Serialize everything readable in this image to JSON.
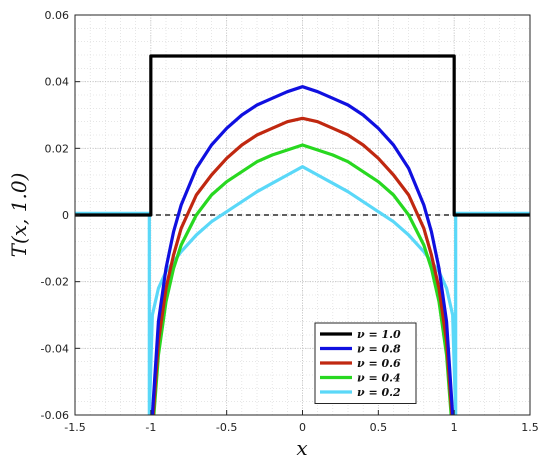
{
  "chart_data": {
    "type": "line",
    "xlabel": "x",
    "ylabel": "T(x, 1.0)",
    "xlim": [
      -1.5,
      1.5
    ],
    "ylim": [
      -0.06,
      0.06
    ],
    "grid": "major and minor (dotted)",
    "legend_position": "bottom-right",
    "xticks": [
      "-1.5",
      "-1",
      "-0.5",
      "0",
      "0.5",
      "1",
      "1.5"
    ],
    "yticks": [
      "-0.06",
      "-0.04",
      "-0.02",
      "0",
      "0.02",
      "0.04",
      "0.06"
    ],
    "zero_line": {
      "y": 0,
      "style": "dashed",
      "color": "#000000"
    },
    "series": [
      {
        "name": "ν = 1.0",
        "color": "#000000",
        "x": [
          -1.5,
          -1.0,
          -1.0,
          -1.0,
          1.0,
          1.0,
          1.0,
          1.5
        ],
        "y": [
          0.0,
          0.0,
          0.0477,
          0.0477,
          0.0477,
          0.0477,
          0.0,
          0.0
        ]
      },
      {
        "name": "ν = 0.8",
        "color": "#1010e0",
        "x": [
          -0.99,
          -0.95,
          -0.9,
          -0.85,
          -0.8,
          -0.7,
          -0.6,
          -0.5,
          -0.4,
          -0.3,
          -0.2,
          -0.1,
          0.0,
          0.1,
          0.2,
          0.3,
          0.4,
          0.5,
          0.6,
          0.7,
          0.8,
          0.85,
          0.9,
          0.95,
          0.99
        ],
        "y": [
          -0.06,
          -0.032,
          -0.016,
          -0.005,
          0.003,
          0.014,
          0.021,
          0.026,
          0.03,
          0.033,
          0.035,
          0.037,
          0.0385,
          0.037,
          0.035,
          0.033,
          0.03,
          0.026,
          0.021,
          0.014,
          0.003,
          -0.005,
          -0.016,
          -0.032,
          -0.06
        ]
      },
      {
        "name": "ν = 0.6",
        "color": "#c02810",
        "x": [
          -0.985,
          -0.95,
          -0.9,
          -0.85,
          -0.8,
          -0.7,
          -0.6,
          -0.5,
          -0.4,
          -0.3,
          -0.2,
          -0.1,
          0.0,
          0.1,
          0.2,
          0.3,
          0.4,
          0.5,
          0.6,
          0.7,
          0.8,
          0.85,
          0.9,
          0.95,
          0.985
        ],
        "y": [
          -0.06,
          -0.038,
          -0.022,
          -0.012,
          -0.004,
          0.006,
          0.012,
          0.017,
          0.021,
          0.024,
          0.026,
          0.028,
          0.029,
          0.028,
          0.026,
          0.024,
          0.021,
          0.017,
          0.012,
          0.006,
          -0.004,
          -0.012,
          -0.022,
          -0.038,
          -0.06
        ]
      },
      {
        "name": "ν = 0.4",
        "color": "#28d820",
        "x": [
          -0.98,
          -0.95,
          -0.9,
          -0.85,
          -0.8,
          -0.7,
          -0.6,
          -0.5,
          -0.4,
          -0.3,
          -0.2,
          -0.1,
          0.0,
          0.1,
          0.2,
          0.3,
          0.4,
          0.5,
          0.6,
          0.7,
          0.8,
          0.85,
          0.9,
          0.95,
          0.98
        ],
        "y": [
          -0.06,
          -0.042,
          -0.026,
          -0.016,
          -0.009,
          0.0,
          0.006,
          0.01,
          0.013,
          0.016,
          0.018,
          0.0195,
          0.021,
          0.0195,
          0.018,
          0.016,
          0.013,
          0.01,
          0.006,
          0.0,
          -0.009,
          -0.016,
          -0.026,
          -0.042,
          -0.06
        ]
      },
      {
        "name": "ν = 0.2",
        "color": "#5ad8f8",
        "x": [
          -1.5,
          -1.01,
          -1.01,
          -0.99,
          -0.95,
          -0.9,
          -0.8,
          -0.7,
          -0.6,
          -0.5,
          -0.4,
          -0.3,
          -0.2,
          -0.1,
          0.0,
          0.1,
          0.2,
          0.3,
          0.4,
          0.5,
          0.6,
          0.7,
          0.8,
          0.9,
          0.95,
          0.99,
          1.01,
          1.01,
          1.5
        ],
        "y": [
          0.0005,
          0.0005,
          -0.06,
          -0.03,
          -0.022,
          -0.017,
          -0.011,
          -0.006,
          -0.002,
          0.001,
          0.004,
          0.007,
          0.0095,
          0.012,
          0.0145,
          0.012,
          0.0095,
          0.007,
          0.004,
          0.001,
          -0.002,
          -0.006,
          -0.011,
          -0.017,
          -0.022,
          -0.03,
          -0.06,
          0.0005,
          0.0005
        ]
      }
    ]
  }
}
